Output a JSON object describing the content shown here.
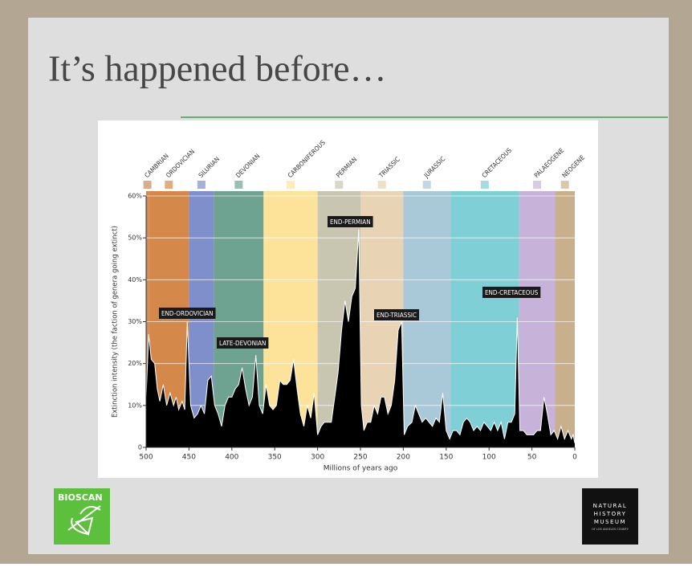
{
  "slide_title": "It’s happened before…",
  "logos": {
    "left": "BIOSCAN",
    "right": [
      "NATURAL",
      "HISTORY",
      "MUSEUM",
      "OF LOS ANGELES COUNTY"
    ]
  },
  "chart_data": {
    "type": "area",
    "ylabel": "Extinction intensity (the faction of genera going extinct)",
    "xlabel": "Millions of years ago",
    "xlim": [
      500,
      0
    ],
    "xticks": [
      500,
      450,
      400,
      350,
      300,
      250,
      200,
      150,
      100,
      50,
      0
    ],
    "ylim": [
      0,
      60
    ],
    "yticks": [
      0,
      {
        "value": 10,
        "label": "10%"
      },
      {
        "value": 20,
        "label": "20%"
      },
      {
        "value": 30,
        "label": "30%"
      },
      {
        "value": 40,
        "label": "40%"
      },
      {
        "value": 50,
        "label": "50%"
      },
      {
        "value": 60,
        "label": "60%"
      }
    ],
    "grid": true,
    "color": "#000000",
    "periods": [
      {
        "name": "CAMBRIAN",
        "start": 500,
        "end": 497,
        "color": "#c98a5a"
      },
      {
        "name": "ORDOVICIAN",
        "start": 497,
        "end": 450,
        "color": "#d4894a"
      },
      {
        "name": "SILURIAN",
        "start": 450,
        "end": 421,
        "color": "#7f8fcc"
      },
      {
        "name": "DEVONIAN",
        "start": 421,
        "end": 363,
        "color": "#6fa391"
      },
      {
        "name": "CARBONIFEROUS",
        "start": 363,
        "end": 300,
        "color": "#fde39a"
      },
      {
        "name": "PERMIAN",
        "start": 300,
        "end": 250,
        "color": "#c8c6b0"
      },
      {
        "name": "TRIASSIC",
        "start": 250,
        "end": 200,
        "color": "#e8d3b4"
      },
      {
        "name": "JURASSIC",
        "start": 200,
        "end": 145,
        "color": "#a9c8d8"
      },
      {
        "name": "CRETACEOUS",
        "start": 145,
        "end": 65,
        "color": "#7fcfd6"
      },
      {
        "name": "PALAEOGENE",
        "start": 65,
        "end": 23,
        "color": "#c7b2da"
      },
      {
        "name": "NEOGENE",
        "start": 23,
        "end": 0,
        "color": "#c8b08c"
      }
    ],
    "annotations": [
      "END-ORDOVICIAN",
      "LATE-DEVONIAN",
      "END-PERMIAN",
      "END-TRIASSIC",
      "END-CRETACEOUS"
    ],
    "x": [
      500,
      497,
      494,
      490,
      487,
      484,
      480,
      476,
      472,
      468,
      465,
      462,
      458,
      455,
      452,
      448,
      444,
      440,
      436,
      432,
      428,
      424,
      420,
      416,
      412,
      408,
      404,
      400,
      396,
      392,
      388,
      384,
      380,
      376,
      372,
      368,
      364,
      360,
      356,
      352,
      348,
      344,
      340,
      336,
      332,
      328,
      324,
      320,
      316,
      312,
      308,
      304,
      300,
      296,
      292,
      288,
      284,
      280,
      276,
      272,
      268,
      264,
      260,
      256,
      252,
      249,
      246,
      242,
      238,
      234,
      230,
      226,
      222,
      218,
      214,
      210,
      206,
      202,
      199,
      195,
      190,
      186,
      182,
      178,
      174,
      170,
      166,
      162,
      158,
      154,
      150,
      146,
      142,
      138,
      134,
      130,
      126,
      122,
      118,
      114,
      110,
      106,
      102,
      98,
      94,
      90,
      86,
      82,
      78,
      74,
      70,
      67,
      64,
      60,
      56,
      52,
      48,
      44,
      40,
      36,
      32,
      28,
      24,
      20,
      16,
      12,
      8,
      4,
      2,
      0
    ],
    "values": [
      12,
      27,
      21,
      20,
      14,
      11,
      15,
      10,
      13,
      10,
      12,
      9,
      11,
      9,
      30,
      10,
      7,
      8,
      10,
      8,
      16,
      17,
      10,
      8,
      5,
      10,
      12,
      12,
      14,
      15,
      19,
      14,
      10,
      12,
      22,
      10,
      8,
      15,
      10,
      9,
      10,
      16,
      15,
      15,
      16,
      21,
      14,
      8,
      5,
      10,
      7,
      13,
      3,
      5,
      6,
      6,
      6,
      12,
      18,
      28,
      35,
      30,
      36,
      38,
      52,
      10,
      4,
      6,
      6,
      10,
      8,
      12,
      12,
      8,
      10,
      16,
      28,
      30,
      3,
      5,
      6,
      10,
      8,
      6,
      7,
      6,
      5,
      7,
      6,
      13,
      4,
      2,
      4,
      4,
      3,
      6,
      7,
      6,
      4,
      5,
      4,
      6,
      5,
      4,
      6,
      4,
      6,
      2,
      6,
      6,
      8,
      31,
      4,
      4,
      3,
      3,
      3,
      4,
      4,
      12,
      8,
      3,
      4,
      2,
      5,
      2,
      4,
      2,
      3,
      1
    ]
  }
}
